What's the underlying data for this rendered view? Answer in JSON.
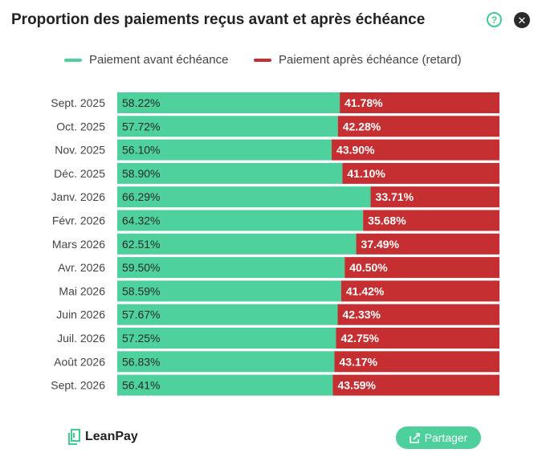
{
  "header": {
    "title": "Proportion des paiements reçus avant et après échéance",
    "help_icon_glyph": "?",
    "close_icon_glyph": "✕"
  },
  "colors": {
    "before": "#4fd19e",
    "after": "#c62f31",
    "accent": "#4dd09c"
  },
  "chart_data": {
    "type": "bar",
    "stacked": true,
    "orientation": "horizontal",
    "percent_scale": true,
    "legend_position": "top",
    "categories": [
      "Sept. 2025",
      "Oct. 2025",
      "Nov. 2025",
      "Déc. 2025",
      "Janv. 2026",
      "Févr. 2026",
      "Mars 2026",
      "Avr. 2026",
      "Mai 2026",
      "Juin 2026",
      "Juil. 2026",
      "Août 2026",
      "Sept. 2026"
    ],
    "series": [
      {
        "name": "Paiement avant échéance",
        "values": [
          58.22,
          57.72,
          56.1,
          58.9,
          66.29,
          64.32,
          62.51,
          59.5,
          58.59,
          57.67,
          57.25,
          56.83,
          56.41
        ]
      },
      {
        "name": "Paiement après échéance (retard)",
        "values": [
          41.78,
          42.28,
          43.9,
          41.1,
          33.71,
          35.68,
          37.49,
          40.5,
          41.42,
          42.33,
          42.75,
          43.17,
          43.59
        ]
      }
    ],
    "xlim": [
      0,
      100
    ]
  },
  "footer": {
    "brand": "LeanPay",
    "share_label": "Partager",
    "share_icon": "share-icon",
    "logo_icon": "leanpay-logo-icon"
  }
}
